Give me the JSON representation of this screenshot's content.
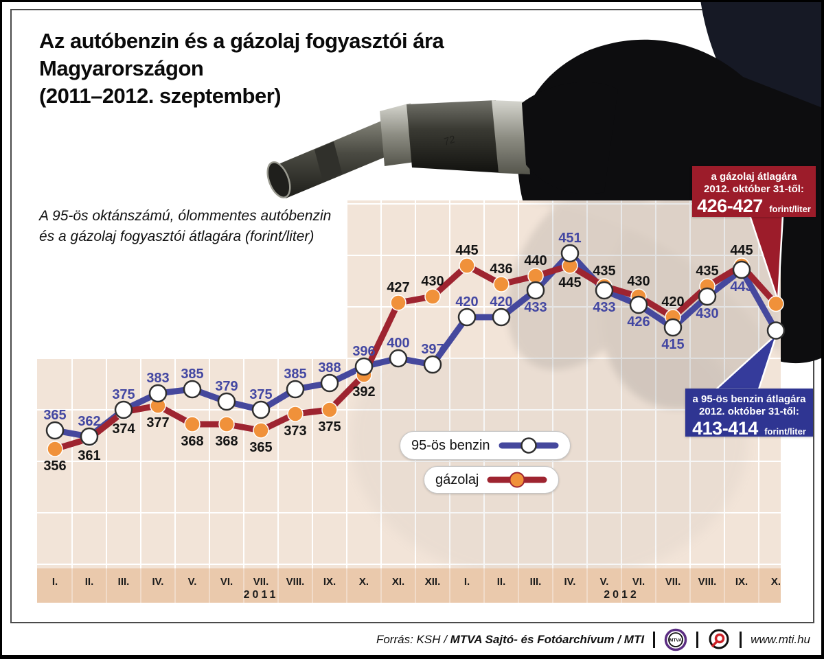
{
  "title": {
    "line1": "Az autóbenzin és a gázolaj fogyasztói ára",
    "line2": "Magyarországon",
    "line3": "(2011–2012. szeptember)"
  },
  "subtitle": {
    "line1": "A 95-ös oktánszámú, ólommentes autóbenzin",
    "line2": "és a gázolaj fogyasztói átlagára (forint/liter)"
  },
  "photo": {
    "nozzle_marking": "72"
  },
  "chart_data": {
    "type": "line",
    "title": "Az autóbenzin és a gázolaj fogyasztói ára Magyarországon (2011–2012. szeptember)",
    "unit": "forint/liter",
    "ylim": [
      300,
      475
    ],
    "grid_step": 25,
    "legend_position": "inside-bottom-center",
    "axis": {
      "groups": [
        {
          "year": "2011",
          "months": [
            "I.",
            "II.",
            "III.",
            "IV.",
            "V.",
            "VI.",
            "VII.",
            "VIII.",
            "IX.",
            "X.",
            "XI.",
            "XII."
          ]
        },
        {
          "year": "2012",
          "months": [
            "I.",
            "II.",
            "III.",
            "IV.",
            "V.",
            "VI.",
            "VII.",
            "VIII.",
            "IX.",
            "X."
          ]
        }
      ]
    },
    "series": [
      {
        "name": "95-ös benzin",
        "color": "#45489d",
        "marker_fill": "#ffffff",
        "marker_stroke": "#2f2f2f",
        "label_color": "#4347a2",
        "values": [
          365,
          362,
          375,
          383,
          385,
          379,
          375,
          385,
          388,
          396,
          400,
          397,
          420,
          420,
          433,
          451,
          433,
          426,
          415,
          430,
          443,
          413.5
        ],
        "labels": [
          "365",
          "362",
          "375",
          "383",
          "385",
          "379",
          "375",
          "385",
          "388",
          "396",
          "400",
          "397",
          "420",
          "420",
          "433",
          "451",
          "433",
          "426",
          "415",
          "430",
          "443",
          null
        ],
        "label_side": [
          "above",
          "above",
          "above",
          "above",
          "above",
          "above",
          "above",
          "above",
          "above",
          "above",
          "above",
          "above",
          "above",
          "above",
          "below",
          "above",
          "below",
          "below",
          "below",
          "below",
          "below",
          null
        ],
        "final_announced": "413-414"
      },
      {
        "name": "gázolaj",
        "color": "#9e2430",
        "marker_fill": "#f0913a",
        "marker_stroke": "#ffffff",
        "label_color": "#141414",
        "values": [
          356,
          361,
          374,
          377,
          368,
          368,
          365,
          373,
          375,
          392,
          427,
          430,
          445,
          436,
          440,
          445,
          435,
          430,
          420,
          435,
          445,
          426.5
        ],
        "labels": [
          "356",
          "361",
          "374",
          "377",
          "368",
          "368",
          "365",
          "373",
          "375",
          "392",
          "427",
          "430",
          "445",
          "436",
          "440",
          "445",
          "435",
          "430",
          "420",
          "435",
          "445",
          null
        ],
        "label_side": [
          "below",
          "below",
          "below",
          "below",
          "below",
          "below",
          "below",
          "below",
          "below",
          "below",
          "above",
          "above",
          "above",
          "above",
          "above",
          "below",
          "above",
          "above",
          "above",
          "above",
          "above",
          null
        ],
        "final_announced": "426-427"
      }
    ]
  },
  "legend": {
    "items": [
      {
        "label": "95-ös benzin"
      },
      {
        "label": "gázolaj"
      }
    ]
  },
  "callouts": {
    "diesel": {
      "line1": "a gázolaj átlagára",
      "line2": "2012. október 31-től:",
      "value": "426-427",
      "unit": "forint/liter",
      "bg": "#9c1c2a"
    },
    "petrol": {
      "line1": "a 95-ös benzin átlagára",
      "line2": "2012. október 31-től:",
      "value": "413-414",
      "unit": "forint/liter",
      "bg": "#2f3592"
    }
  },
  "footer": {
    "source_prefix": "Forrás: KSH / ",
    "source_bold": "MTVA Sajtó- és Fotóarchívum",
    "source_suffix": " / MTI",
    "mtva_logo_text": "MTVA",
    "url": "www.mti.hu"
  },
  "colors": {
    "plot_bg": "#f2e4d8",
    "axis_strip": "#eac9ac",
    "gridline": "#ffffff",
    "frame": "#4a4a4a"
  }
}
